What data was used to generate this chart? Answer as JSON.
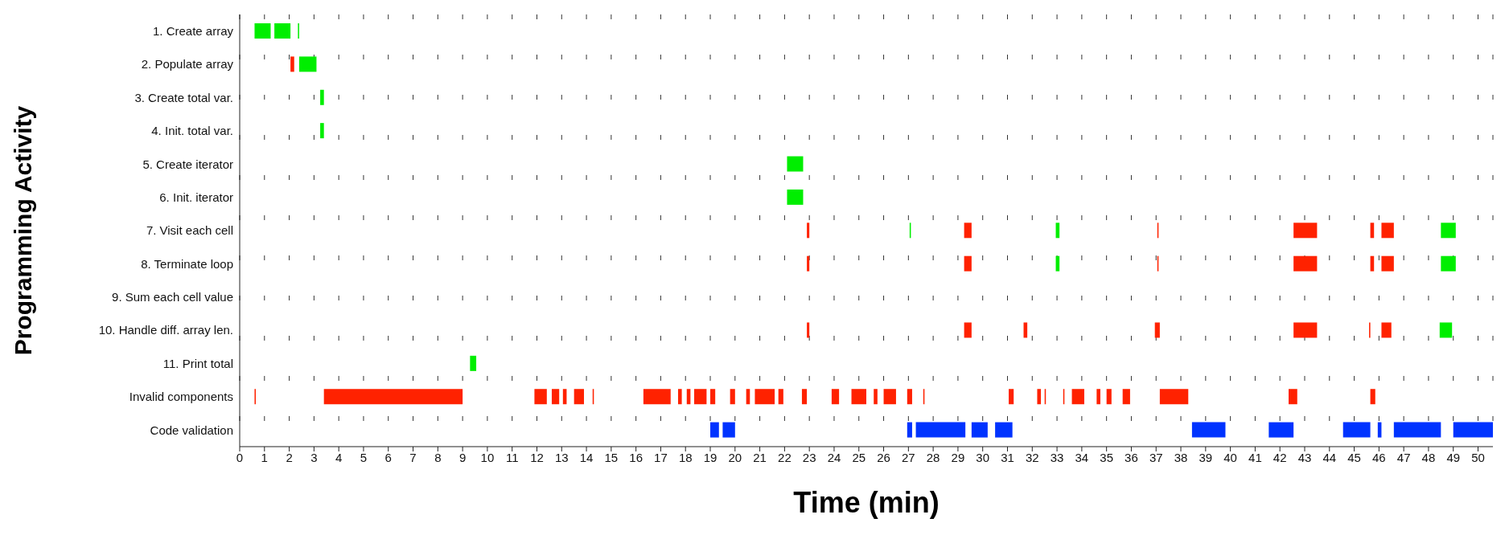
{
  "chart_data": {
    "type": "bar",
    "orientation": "horizontal",
    "xlabel": "Time (min)",
    "ylabel": "Programming Activity",
    "categories": [
      "1. Create array",
      "2. Populate array",
      "3. Create total var.",
      "4. Init. total var.",
      "5. Create iterator",
      "6. Init. iterator",
      "7. Visit each cell",
      "8. Terminate loop",
      "9. Sum each cell value",
      "10. Handle diff. array len.",
      "11. Print total",
      "Invalid components",
      "Code validation"
    ],
    "xlim": [
      0,
      50.6
    ],
    "xticks": [
      0,
      1,
      2,
      3,
      4,
      5,
      6,
      7,
      8,
      9,
      10,
      11,
      12,
      13,
      14,
      15,
      16,
      17,
      18,
      19,
      20,
      21,
      22,
      23,
      24,
      25,
      26,
      27,
      28,
      29,
      30,
      31,
      32,
      33,
      34,
      35,
      36,
      37,
      38,
      39,
      40,
      41,
      42,
      43,
      44,
      45,
      46,
      47,
      48,
      49,
      50
    ],
    "grid": "x",
    "series": [
      {
        "color": "#00ee00",
        "base": [
          0.6,
          2.4,
          3.25,
          3.25,
          22.1,
          22.1,
          27.05,
          32.95,
          null,
          48.45,
          9.3,
          null,
          null
        ],
        "values": [
          0.65,
          0.7,
          0.15,
          0.15,
          0.65,
          0.65,
          0.05,
          0.15,
          null,
          0.5,
          0.25,
          null,
          null
        ]
      },
      {
        "color": "#00ee00",
        "base": [
          1.4,
          null,
          null,
          null,
          null,
          null,
          32.95,
          48.5,
          null,
          null,
          null,
          null,
          null
        ],
        "values": [
          0.65,
          null,
          null,
          null,
          null,
          null,
          0.15,
          0.6,
          null,
          null,
          null,
          null,
          null
        ]
      },
      {
        "color": "#00ee00",
        "base": [
          2.35,
          null,
          null,
          null,
          null,
          null,
          48.5,
          null,
          null,
          null,
          null,
          null,
          null
        ],
        "values": [
          0.05,
          null,
          null,
          null,
          null,
          null,
          0.6,
          null,
          null,
          null,
          null,
          null,
          null
        ]
      },
      {
        "color": "#ff2200",
        "base": [
          null,
          2.05,
          null,
          null,
          null,
          null,
          22.9,
          22.9,
          null,
          22.9,
          null,
          0.6,
          null
        ],
        "values": [
          null,
          0.15,
          null,
          null,
          null,
          null,
          0.1,
          0.1,
          null,
          0.1,
          null,
          0.05,
          null
        ]
      },
      {
        "color": "#ff2200",
        "base": [
          null,
          null,
          null,
          null,
          null,
          null,
          29.25,
          29.25,
          null,
          29.25,
          null,
          3.4,
          null
        ],
        "values": [
          null,
          null,
          null,
          null,
          null,
          null,
          0.3,
          0.3,
          null,
          0.3,
          null,
          5.6,
          null
        ]
      },
      {
        "color": "#ff2200",
        "base": [
          null,
          null,
          null,
          null,
          null,
          null,
          37.05,
          37.05,
          null,
          31.65,
          null,
          11.9,
          null
        ],
        "values": [
          null,
          null,
          null,
          null,
          null,
          null,
          0.05,
          0.05,
          null,
          0.15,
          null,
          0.5,
          null
        ]
      },
      {
        "color": "#ff2200",
        "base": [
          null,
          null,
          null,
          null,
          null,
          null,
          42.55,
          42.55,
          null,
          36.95,
          null,
          12.6,
          null
        ],
        "values": [
          null,
          null,
          null,
          null,
          null,
          null,
          0.95,
          0.95,
          null,
          0.2,
          null,
          0.3,
          null
        ]
      },
      {
        "color": "#ff2200",
        "base": [
          null,
          null,
          null,
          null,
          null,
          null,
          45.65,
          45.65,
          null,
          42.55,
          null,
          13.05,
          null
        ],
        "values": [
          null,
          null,
          null,
          null,
          null,
          null,
          0.15,
          0.15,
          null,
          0.95,
          null,
          0.15,
          null
        ]
      },
      {
        "color": "#ff2200",
        "base": [
          null,
          null,
          null,
          null,
          null,
          null,
          46.1,
          46.1,
          null,
          45.6,
          null,
          13.5,
          null
        ],
        "values": [
          null,
          null,
          null,
          null,
          null,
          null,
          0.5,
          0.5,
          null,
          0.05,
          null,
          0.4,
          null
        ]
      },
      {
        "color": "#ff2200",
        "base": [
          null,
          null,
          null,
          null,
          null,
          null,
          null,
          null,
          null,
          46.1,
          null,
          14.25,
          null
        ],
        "values": [
          null,
          null,
          null,
          null,
          null,
          null,
          null,
          null,
          null,
          0.4,
          null,
          0.05,
          null
        ]
      },
      {
        "color": "#ff2200",
        "base": [
          null,
          null,
          null,
          null,
          null,
          null,
          null,
          null,
          null,
          null,
          null,
          16.3,
          null
        ],
        "values": [
          null,
          null,
          null,
          null,
          null,
          null,
          null,
          null,
          null,
          null,
          null,
          1.1,
          null
        ]
      },
      {
        "color": "#ff2200",
        "base": [
          null,
          null,
          null,
          null,
          null,
          null,
          null,
          null,
          null,
          null,
          null,
          17.7,
          null
        ],
        "values": [
          null,
          null,
          null,
          null,
          null,
          null,
          null,
          null,
          null,
          null,
          null,
          0.15,
          null
        ]
      },
      {
        "color": "#ff2200",
        "base": [
          null,
          null,
          null,
          null,
          null,
          null,
          null,
          null,
          null,
          null,
          null,
          18.05,
          null
        ],
        "values": [
          null,
          null,
          null,
          null,
          null,
          null,
          null,
          null,
          null,
          null,
          null,
          0.15,
          null
        ]
      },
      {
        "color": "#ff2200",
        "base": [
          null,
          null,
          null,
          null,
          null,
          null,
          null,
          null,
          null,
          null,
          null,
          18.35,
          null
        ],
        "values": [
          null,
          null,
          null,
          null,
          null,
          null,
          null,
          null,
          null,
          null,
          null,
          0.5,
          null
        ]
      },
      {
        "color": "#ff2200",
        "base": [
          null,
          null,
          null,
          null,
          null,
          null,
          null,
          null,
          null,
          null,
          null,
          19.0,
          null
        ],
        "values": [
          null,
          null,
          null,
          null,
          null,
          null,
          null,
          null,
          null,
          null,
          null,
          0.2,
          null
        ]
      },
      {
        "color": "#ff2200",
        "base": [
          null,
          null,
          null,
          null,
          null,
          null,
          null,
          null,
          null,
          null,
          null,
          19.8,
          null
        ],
        "values": [
          null,
          null,
          null,
          null,
          null,
          null,
          null,
          null,
          null,
          null,
          null,
          0.2,
          null
        ]
      },
      {
        "color": "#ff2200",
        "base": [
          null,
          null,
          null,
          null,
          null,
          null,
          null,
          null,
          null,
          null,
          null,
          20.45,
          null
        ],
        "values": [
          null,
          null,
          null,
          null,
          null,
          null,
          null,
          null,
          null,
          null,
          null,
          0.15,
          null
        ]
      },
      {
        "color": "#ff2200",
        "base": [
          null,
          null,
          null,
          null,
          null,
          null,
          null,
          null,
          null,
          null,
          null,
          20.8,
          null
        ],
        "values": [
          null,
          null,
          null,
          null,
          null,
          null,
          null,
          null,
          null,
          null,
          null,
          0.8,
          null
        ]
      },
      {
        "color": "#ff2200",
        "base": [
          null,
          null,
          null,
          null,
          null,
          null,
          null,
          null,
          null,
          null,
          null,
          21.75,
          null
        ],
        "values": [
          null,
          null,
          null,
          null,
          null,
          null,
          null,
          null,
          null,
          null,
          null,
          0.2,
          null
        ]
      },
      {
        "color": "#ff2200",
        "base": [
          null,
          null,
          null,
          null,
          null,
          null,
          null,
          null,
          null,
          null,
          null,
          22.7,
          null
        ],
        "values": [
          null,
          null,
          null,
          null,
          null,
          null,
          null,
          null,
          null,
          null,
          null,
          0.2,
          null
        ]
      },
      {
        "color": "#ff2200",
        "base": [
          null,
          null,
          null,
          null,
          null,
          null,
          null,
          null,
          null,
          null,
          null,
          23.9,
          null
        ],
        "values": [
          null,
          null,
          null,
          null,
          null,
          null,
          null,
          null,
          null,
          null,
          null,
          0.3,
          null
        ]
      },
      {
        "color": "#ff2200",
        "base": [
          null,
          null,
          null,
          null,
          null,
          null,
          null,
          null,
          null,
          null,
          null,
          24.7,
          null
        ],
        "values": [
          null,
          null,
          null,
          null,
          null,
          null,
          null,
          null,
          null,
          null,
          null,
          0.6,
          null
        ]
      },
      {
        "color": "#ff2200",
        "base": [
          null,
          null,
          null,
          null,
          null,
          null,
          null,
          null,
          null,
          null,
          null,
          25.6,
          null
        ],
        "values": [
          null,
          null,
          null,
          null,
          null,
          null,
          null,
          null,
          null,
          null,
          null,
          0.15,
          null
        ]
      },
      {
        "color": "#ff2200",
        "base": [
          null,
          null,
          null,
          null,
          null,
          null,
          null,
          null,
          null,
          null,
          null,
          26.0,
          null
        ],
        "values": [
          null,
          null,
          null,
          null,
          null,
          null,
          null,
          null,
          null,
          null,
          null,
          0.5,
          null
        ]
      },
      {
        "color": "#ff2200",
        "base": [
          null,
          null,
          null,
          null,
          null,
          null,
          null,
          null,
          null,
          null,
          null,
          26.95,
          null
        ],
        "values": [
          null,
          null,
          null,
          null,
          null,
          null,
          null,
          null,
          null,
          null,
          null,
          0.2,
          null
        ]
      },
      {
        "color": "#ff2200",
        "base": [
          null,
          null,
          null,
          null,
          null,
          null,
          null,
          null,
          null,
          null,
          null,
          27.6,
          null
        ],
        "values": [
          null,
          null,
          null,
          null,
          null,
          null,
          null,
          null,
          null,
          null,
          null,
          0.05,
          null
        ]
      },
      {
        "color": "#ff2200",
        "base": [
          null,
          null,
          null,
          null,
          null,
          null,
          null,
          null,
          null,
          null,
          null,
          31.05,
          null
        ],
        "values": [
          null,
          null,
          null,
          null,
          null,
          null,
          null,
          null,
          null,
          null,
          null,
          0.2,
          null
        ]
      },
      {
        "color": "#ff2200",
        "base": [
          null,
          null,
          null,
          null,
          null,
          null,
          null,
          null,
          null,
          null,
          null,
          32.2,
          null
        ],
        "values": [
          null,
          null,
          null,
          null,
          null,
          null,
          null,
          null,
          null,
          null,
          null,
          0.15,
          null
        ]
      },
      {
        "color": "#ff2200",
        "base": [
          null,
          null,
          null,
          null,
          null,
          null,
          null,
          null,
          null,
          null,
          null,
          32.5,
          null
        ],
        "values": [
          null,
          null,
          null,
          null,
          null,
          null,
          null,
          null,
          null,
          null,
          null,
          0.05,
          null
        ]
      },
      {
        "color": "#ff2200",
        "base": [
          null,
          null,
          null,
          null,
          null,
          null,
          null,
          null,
          null,
          null,
          null,
          33.25,
          null
        ],
        "values": [
          null,
          null,
          null,
          null,
          null,
          null,
          null,
          null,
          null,
          null,
          null,
          0.05,
          null
        ]
      },
      {
        "color": "#ff2200",
        "base": [
          null,
          null,
          null,
          null,
          null,
          null,
          null,
          null,
          null,
          null,
          null,
          33.6,
          null
        ],
        "values": [
          null,
          null,
          null,
          null,
          null,
          null,
          null,
          null,
          null,
          null,
          null,
          0.5,
          null
        ]
      },
      {
        "color": "#ff2200",
        "base": [
          null,
          null,
          null,
          null,
          null,
          null,
          null,
          null,
          null,
          null,
          null,
          34.6,
          null
        ],
        "values": [
          null,
          null,
          null,
          null,
          null,
          null,
          null,
          null,
          null,
          null,
          null,
          0.15,
          null
        ]
      },
      {
        "color": "#ff2200",
        "base": [
          null,
          null,
          null,
          null,
          null,
          null,
          null,
          null,
          null,
          null,
          null,
          35.0,
          null
        ],
        "values": [
          null,
          null,
          null,
          null,
          null,
          null,
          null,
          null,
          null,
          null,
          null,
          0.2,
          null
        ]
      },
      {
        "color": "#ff2200",
        "base": [
          null,
          null,
          null,
          null,
          null,
          null,
          null,
          null,
          null,
          null,
          null,
          35.65,
          null
        ],
        "values": [
          null,
          null,
          null,
          null,
          null,
          null,
          null,
          null,
          null,
          null,
          null,
          0.3,
          null
        ]
      },
      {
        "color": "#ff2200",
        "base": [
          null,
          null,
          null,
          null,
          null,
          null,
          null,
          null,
          null,
          null,
          null,
          37.15,
          null
        ],
        "values": [
          null,
          null,
          null,
          null,
          null,
          null,
          null,
          null,
          null,
          null,
          null,
          1.15,
          null
        ]
      },
      {
        "color": "#ff2200",
        "base": [
          null,
          null,
          null,
          null,
          null,
          null,
          null,
          null,
          null,
          null,
          null,
          42.35,
          null
        ],
        "values": [
          null,
          null,
          null,
          null,
          null,
          null,
          null,
          null,
          null,
          null,
          null,
          0.35,
          null
        ]
      },
      {
        "color": "#ff2200",
        "base": [
          null,
          null,
          null,
          null,
          null,
          null,
          null,
          null,
          null,
          null,
          null,
          45.65,
          null
        ],
        "values": [
          null,
          null,
          null,
          null,
          null,
          null,
          null,
          null,
          null,
          null,
          null,
          0.2,
          null
        ]
      },
      {
        "color": "#0033ff",
        "base": [
          null,
          null,
          null,
          null,
          null,
          null,
          null,
          null,
          null,
          null,
          null,
          null,
          19.0
        ],
        "values": [
          null,
          null,
          null,
          null,
          null,
          null,
          null,
          null,
          null,
          null,
          null,
          null,
          0.35
        ]
      },
      {
        "color": "#0033ff",
        "base": [
          null,
          null,
          null,
          null,
          null,
          null,
          null,
          null,
          null,
          null,
          null,
          null,
          19.5
        ],
        "values": [
          null,
          null,
          null,
          null,
          null,
          null,
          null,
          null,
          null,
          null,
          null,
          null,
          0.5
        ]
      },
      {
        "color": "#0033ff",
        "base": [
          null,
          null,
          null,
          null,
          null,
          null,
          null,
          null,
          null,
          null,
          null,
          null,
          26.95
        ],
        "values": [
          null,
          null,
          null,
          null,
          null,
          null,
          null,
          null,
          null,
          null,
          null,
          null,
          0.2
        ]
      },
      {
        "color": "#0033ff",
        "base": [
          null,
          null,
          null,
          null,
          null,
          null,
          null,
          null,
          null,
          null,
          null,
          null,
          27.3
        ],
        "values": [
          null,
          null,
          null,
          null,
          null,
          null,
          null,
          null,
          null,
          null,
          null,
          null,
          2.0
        ]
      },
      {
        "color": "#0033ff",
        "base": [
          null,
          null,
          null,
          null,
          null,
          null,
          null,
          null,
          null,
          null,
          null,
          null,
          29.55
        ],
        "values": [
          null,
          null,
          null,
          null,
          null,
          null,
          null,
          null,
          null,
          null,
          null,
          null,
          0.65
        ]
      },
      {
        "color": "#0033ff",
        "base": [
          null,
          null,
          null,
          null,
          null,
          null,
          null,
          null,
          null,
          null,
          null,
          null,
          30.5
        ],
        "values": [
          null,
          null,
          null,
          null,
          null,
          null,
          null,
          null,
          null,
          null,
          null,
          null,
          0.7
        ]
      },
      {
        "color": "#0033ff",
        "base": [
          null,
          null,
          null,
          null,
          null,
          null,
          null,
          null,
          null,
          null,
          null,
          null,
          38.45
        ],
        "values": [
          null,
          null,
          null,
          null,
          null,
          null,
          null,
          null,
          null,
          null,
          null,
          null,
          1.35
        ]
      },
      {
        "color": "#0033ff",
        "base": [
          null,
          null,
          null,
          null,
          null,
          null,
          null,
          null,
          null,
          null,
          null,
          null,
          41.55
        ],
        "values": [
          null,
          null,
          null,
          null,
          null,
          null,
          null,
          null,
          null,
          null,
          null,
          null,
          1.0
        ]
      },
      {
        "color": "#0033ff",
        "base": [
          null,
          null,
          null,
          null,
          null,
          null,
          null,
          null,
          null,
          null,
          null,
          null,
          44.55
        ],
        "values": [
          null,
          null,
          null,
          null,
          null,
          null,
          null,
          null,
          null,
          null,
          null,
          null,
          1.1
        ]
      },
      {
        "color": "#0033ff",
        "base": [
          null,
          null,
          null,
          null,
          null,
          null,
          null,
          null,
          null,
          null,
          null,
          null,
          45.95
        ],
        "values": [
          null,
          null,
          null,
          null,
          null,
          null,
          null,
          null,
          null,
          null,
          null,
          null,
          0.15
        ]
      },
      {
        "color": "#0033ff",
        "base": [
          null,
          null,
          null,
          null,
          null,
          null,
          null,
          null,
          null,
          null,
          null,
          null,
          46.6
        ],
        "values": [
          null,
          null,
          null,
          null,
          null,
          null,
          null,
          null,
          null,
          null,
          null,
          null,
          1.9
        ]
      },
      {
        "color": "#0033ff",
        "base": [
          null,
          null,
          null,
          null,
          null,
          null,
          null,
          null,
          null,
          null,
          null,
          null,
          49.0
        ],
        "values": [
          null,
          null,
          null,
          null,
          null,
          null,
          null,
          null,
          null,
          null,
          null,
          null,
          1.6
        ]
      }
    ]
  }
}
